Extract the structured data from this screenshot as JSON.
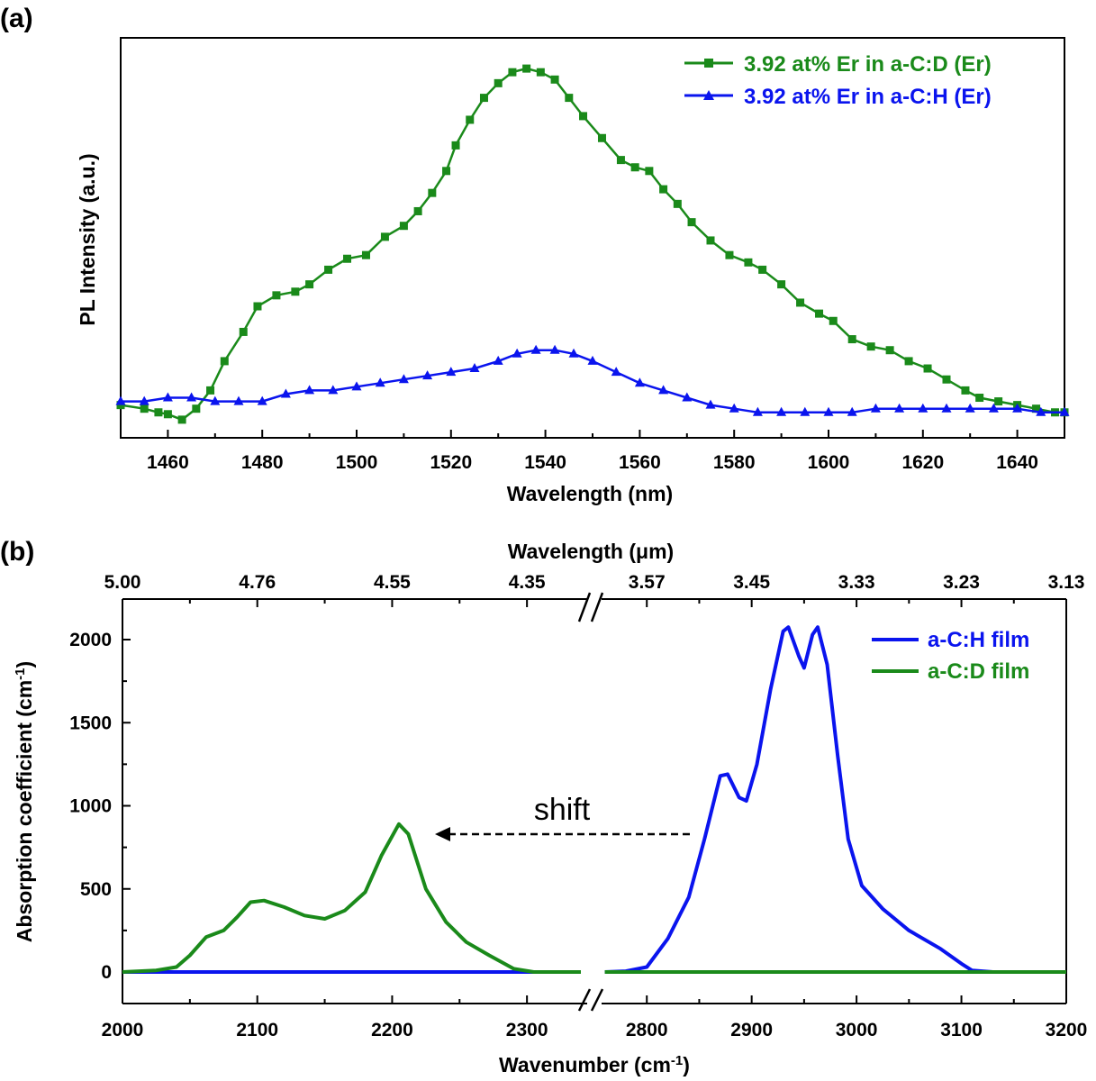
{
  "chart_data": [
    {
      "panel": "(a)",
      "type": "line",
      "xlabel": "Wavelength (nm)",
      "ylabel": "PL Intensity (a.u.)",
      "xlim": [
        1450,
        1650
      ],
      "ylim": [
        0,
        1
      ],
      "x_ticks": [
        "1460",
        "1480",
        "1500",
        "1520",
        "1540",
        "1560",
        "1580",
        "1600",
        "1620",
        "1640"
      ],
      "legend_position": "top-right",
      "series": [
        {
          "name": "3.92 at% Er in a-C:D (Er)",
          "color": "#1a8a1a",
          "marker": "square",
          "points": [
            [
              1450,
              0.06
            ],
            [
              1455,
              0.05
            ],
            [
              1458,
              0.04
            ],
            [
              1460,
              0.035
            ],
            [
              1463,
              0.02
            ],
            [
              1466,
              0.05
            ],
            [
              1469,
              0.1
            ],
            [
              1472,
              0.18
            ],
            [
              1476,
              0.26
            ],
            [
              1479,
              0.33
            ],
            [
              1483,
              0.36
            ],
            [
              1487,
              0.37
            ],
            [
              1490,
              0.39
            ],
            [
              1494,
              0.43
            ],
            [
              1498,
              0.46
            ],
            [
              1502,
              0.47
            ],
            [
              1506,
              0.52
            ],
            [
              1510,
              0.55
            ],
            [
              1513,
              0.59
            ],
            [
              1516,
              0.64
            ],
            [
              1519,
              0.7
            ],
            [
              1521,
              0.77
            ],
            [
              1524,
              0.84
            ],
            [
              1527,
              0.9
            ],
            [
              1530,
              0.94
            ],
            [
              1533,
              0.97
            ],
            [
              1536,
              0.98
            ],
            [
              1539,
              0.97
            ],
            [
              1542,
              0.95
            ],
            [
              1545,
              0.9
            ],
            [
              1548,
              0.85
            ],
            [
              1552,
              0.79
            ],
            [
              1556,
              0.73
            ],
            [
              1559,
              0.71
            ],
            [
              1562,
              0.7
            ],
            [
              1565,
              0.65
            ],
            [
              1568,
              0.61
            ],
            [
              1571,
              0.56
            ],
            [
              1575,
              0.51
            ],
            [
              1579,
              0.47
            ],
            [
              1583,
              0.45
            ],
            [
              1586,
              0.43
            ],
            [
              1590,
              0.39
            ],
            [
              1594,
              0.34
            ],
            [
              1598,
              0.31
            ],
            [
              1601,
              0.29
            ],
            [
              1605,
              0.24
            ],
            [
              1609,
              0.22
            ],
            [
              1613,
              0.21
            ],
            [
              1617,
              0.18
            ],
            [
              1621,
              0.16
            ],
            [
              1625,
              0.13
            ],
            [
              1629,
              0.1
            ],
            [
              1632,
              0.08
            ],
            [
              1636,
              0.07
            ],
            [
              1640,
              0.06
            ],
            [
              1644,
              0.05
            ],
            [
              1648,
              0.04
            ],
            [
              1650,
              0.04
            ]
          ]
        },
        {
          "name": "3.92 at% Er in a-C:H (Er)",
          "color": "#0a14ee",
          "marker": "triangle",
          "points": [
            [
              1450,
              0.07
            ],
            [
              1455,
              0.07
            ],
            [
              1460,
              0.08
            ],
            [
              1465,
              0.08
            ],
            [
              1470,
              0.07
            ],
            [
              1475,
              0.07
            ],
            [
              1480,
              0.07
            ],
            [
              1485,
              0.09
            ],
            [
              1490,
              0.1
            ],
            [
              1495,
              0.1
            ],
            [
              1500,
              0.11
            ],
            [
              1505,
              0.12
            ],
            [
              1510,
              0.13
            ],
            [
              1515,
              0.14
            ],
            [
              1520,
              0.15
            ],
            [
              1525,
              0.16
            ],
            [
              1530,
              0.18
            ],
            [
              1534,
              0.2
            ],
            [
              1538,
              0.21
            ],
            [
              1542,
              0.21
            ],
            [
              1546,
              0.2
            ],
            [
              1550,
              0.18
            ],
            [
              1555,
              0.15
            ],
            [
              1560,
              0.12
            ],
            [
              1565,
              0.1
            ],
            [
              1570,
              0.08
            ],
            [
              1575,
              0.06
            ],
            [
              1580,
              0.05
            ],
            [
              1585,
              0.04
            ],
            [
              1590,
              0.04
            ],
            [
              1595,
              0.04
            ],
            [
              1600,
              0.04
            ],
            [
              1605,
              0.04
            ],
            [
              1610,
              0.05
            ],
            [
              1615,
              0.05
            ],
            [
              1620,
              0.05
            ],
            [
              1625,
              0.05
            ],
            [
              1630,
              0.05
            ],
            [
              1635,
              0.05
            ],
            [
              1640,
              0.05
            ],
            [
              1645,
              0.04
            ],
            [
              1650,
              0.04
            ]
          ]
        }
      ]
    },
    {
      "panel": "(b)",
      "type": "line",
      "xlabel_main": "Wavenumber (cm",
      "xlabel_sup": "-1",
      "xlabel_end": ")",
      "ylabel_main": "Absorption coefficient (cm",
      "ylabel_sup": "-1",
      "ylabel_end": ")",
      "top_xlabel": "Wavelength (μm)",
      "x_break": "between 2350 and 2750",
      "xlim": [
        2000,
        3200
      ],
      "ylim": [
        -200,
        2200
      ],
      "x_ticks": [
        "2000",
        "2100",
        "2200",
        "2300",
        "2800",
        "2900",
        "3000",
        "3100",
        "3200"
      ],
      "y_ticks": [
        "0",
        "500",
        "1000",
        "1500",
        "2000"
      ],
      "top_ticks": [
        "5.00",
        "4.76",
        "4.55",
        "4.35",
        "3.57",
        "3.45",
        "3.33",
        "3.23",
        "3.13"
      ],
      "annotation": "shift",
      "legend_position": "top-right",
      "series": [
        {
          "name": "a-C:H film",
          "color": "#0a14ee",
          "points": [
            [
              2000,
              0
            ],
            [
              2340,
              0
            ],
            [
              2760,
              0
            ],
            [
              2780,
              5
            ],
            [
              2800,
              30
            ],
            [
              2820,
              200
            ],
            [
              2840,
              450
            ],
            [
              2855,
              800
            ],
            [
              2870,
              1180
            ],
            [
              2877,
              1190
            ],
            [
              2888,
              1050
            ],
            [
              2895,
              1030
            ],
            [
              2905,
              1250
            ],
            [
              2918,
              1700
            ],
            [
              2930,
              2050
            ],
            [
              2935,
              2075
            ],
            [
              2945,
              1900
            ],
            [
              2950,
              1830
            ],
            [
              2958,
              2030
            ],
            [
              2963,
              2075
            ],
            [
              2972,
              1850
            ],
            [
              2982,
              1300
            ],
            [
              2992,
              800
            ],
            [
              3005,
              520
            ],
            [
              3025,
              380
            ],
            [
              3050,
              250
            ],
            [
              3080,
              140
            ],
            [
              3100,
              50
            ],
            [
              3110,
              10
            ],
            [
              3130,
              0
            ],
            [
              3200,
              0
            ]
          ]
        },
        {
          "name": "a-C:D film",
          "color": "#1a8a1a",
          "points": [
            [
              2000,
              0
            ],
            [
              2025,
              10
            ],
            [
              2040,
              30
            ],
            [
              2050,
              100
            ],
            [
              2062,
              210
            ],
            [
              2075,
              250
            ],
            [
              2085,
              330
            ],
            [
              2095,
              420
            ],
            [
              2105,
              430
            ],
            [
              2120,
              390
            ],
            [
              2135,
              340
            ],
            [
              2150,
              320
            ],
            [
              2165,
              370
            ],
            [
              2180,
              480
            ],
            [
              2192,
              700
            ],
            [
              2205,
              890
            ],
            [
              2212,
              830
            ],
            [
              2225,
              500
            ],
            [
              2240,
              300
            ],
            [
              2255,
              180
            ],
            [
              2272,
              100
            ],
            [
              2290,
              20
            ],
            [
              2305,
              0
            ],
            [
              2340,
              0
            ],
            [
              2760,
              0
            ],
            [
              3200,
              0
            ]
          ]
        }
      ]
    }
  ]
}
